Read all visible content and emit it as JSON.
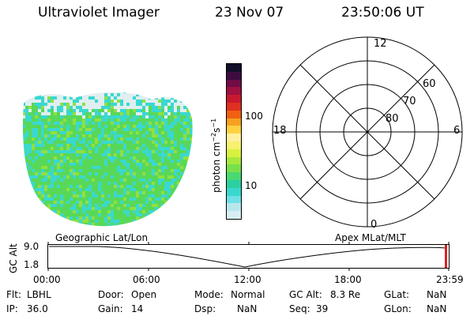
{
  "header": {
    "title": "Ultraviolet Imager",
    "date": "23 Nov 07",
    "time": "23:50:06 UT"
  },
  "colorbar": {
    "label": "photon cm",
    "label_exp1": "−2",
    "label_mid": "s",
    "label_exp2": "−1",
    "ticks": [
      "100",
      "10"
    ],
    "colors": [
      "#d6eef2",
      "#b8e6ec",
      "#6fe0e6",
      "#38d8cc",
      "#2ccfa0",
      "#4ad870",
      "#78e04a",
      "#a8e83c",
      "#d8f040",
      "#f8f070",
      "#fff0a0",
      "#ffd040",
      "#f8a020",
      "#f06010",
      "#e03020",
      "#c81830",
      "#a01040",
      "#700c48",
      "#3c0c40",
      "#101028"
    ]
  },
  "polar": {
    "ring_labels": [
      "60",
      "70",
      "80"
    ],
    "mlt_labels": {
      "top": "12",
      "bottom": "0",
      "left": "18",
      "right": "6"
    }
  },
  "strip": {
    "left_title": "Geographic Lat/Lon",
    "right_title": "Apex MLat/MLT",
    "ylabel": "GC Alt",
    "ymax": "9.0",
    "ymin": "1.8",
    "time_ticks": [
      "00:00",
      "06:00",
      "12:00",
      "18:00",
      "23:59"
    ]
  },
  "image_colors": {
    "light": "#e0eef0",
    "cyan": "#3ad8d0",
    "green": "#58d858",
    "lime": "#90e040"
  },
  "info": {
    "filter_label": "Flt:",
    "filter_value": "LBHL",
    "ip_label": "IP:",
    "ip_value": "36.0",
    "door_label": "Door:",
    "door_value": "Open",
    "gain_label": "Gain:",
    "gain_value": "14",
    "mode_label": "Mode:",
    "mode_value": "Normal",
    "dsp_label": "Dsp:",
    "dsp_value": "NaN",
    "alt_label": "GC Alt:",
    "alt_value": "8.3 Re",
    "seq_label": "Seq:",
    "seq_value": "39",
    "glat_label": "GLat:",
    "glat_value": "NaN",
    "glon_label": "GLon:",
    "glon_value": "NaN"
  }
}
